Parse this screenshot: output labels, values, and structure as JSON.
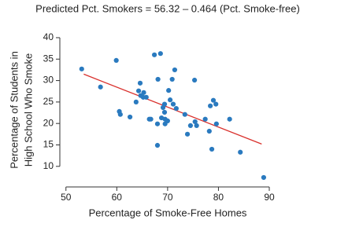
{
  "chart_data": {
    "type": "scatter",
    "title": "Predicted Pct. Smokers = 56.32 – 0.464 (Pct. Smoke-free)",
    "xlabel": "Percentage of Smoke-Free Homes",
    "ylabel": [
      "Percentage of Students in",
      "High School Who Smoke"
    ],
    "x": [
      53.1,
      56.8,
      59.9,
      60.5,
      60.7,
      62.6,
      63.8,
      64.3,
      64.6,
      64.7,
      65.3,
      65.2,
      65.8,
      66.4,
      66.7,
      67.4,
      68.6,
      68.1,
      68.0,
      68.0,
      68.8,
      69.1,
      69.4,
      69.4,
      69.5,
      69.5,
      70.0,
      70.5,
      70.2,
      70.9,
      71.1,
      71.4,
      71.7,
      73.4,
      73.9,
      74.5,
      75.3,
      75.7,
      75.4,
      77.4,
      78.4,
      78.2,
      78.7,
      79.0,
      79.5,
      79.6,
      82.2,
      84.3,
      88.9
    ],
    "values": [
      32.7,
      28.5,
      34.7,
      22.8,
      22.1,
      21.5,
      25.0,
      27.6,
      29.4,
      26.5,
      27.2,
      26.1,
      26.1,
      21.0,
      21.0,
      36.0,
      36.3,
      30.3,
      19.9,
      14.9,
      21.3,
      23.7,
      24.5,
      22.6,
      21.0,
      19.9,
      20.6,
      25.5,
      27.7,
      30.3,
      24.5,
      32.5,
      23.5,
      22.1,
      17.5,
      19.5,
      30.1,
      19.5,
      20.4,
      21.0,
      24.1,
      18.2,
      14.0,
      25.4,
      24.5,
      19.9,
      21.0,
      13.3,
      7.4
    ],
    "color": "#2a7abf",
    "fit": {
      "x": [
        53.5,
        88.5
      ],
      "values": [
        31.5,
        15.2
      ],
      "color": "#d9302c"
    },
    "xlim": [
      48.8,
      90
    ],
    "ylim": [
      5.2,
      41
    ],
    "xticks": [
      50,
      60,
      70,
      80,
      90
    ],
    "yticks": [
      10,
      15,
      20,
      25,
      30,
      35,
      40
    ]
  }
}
